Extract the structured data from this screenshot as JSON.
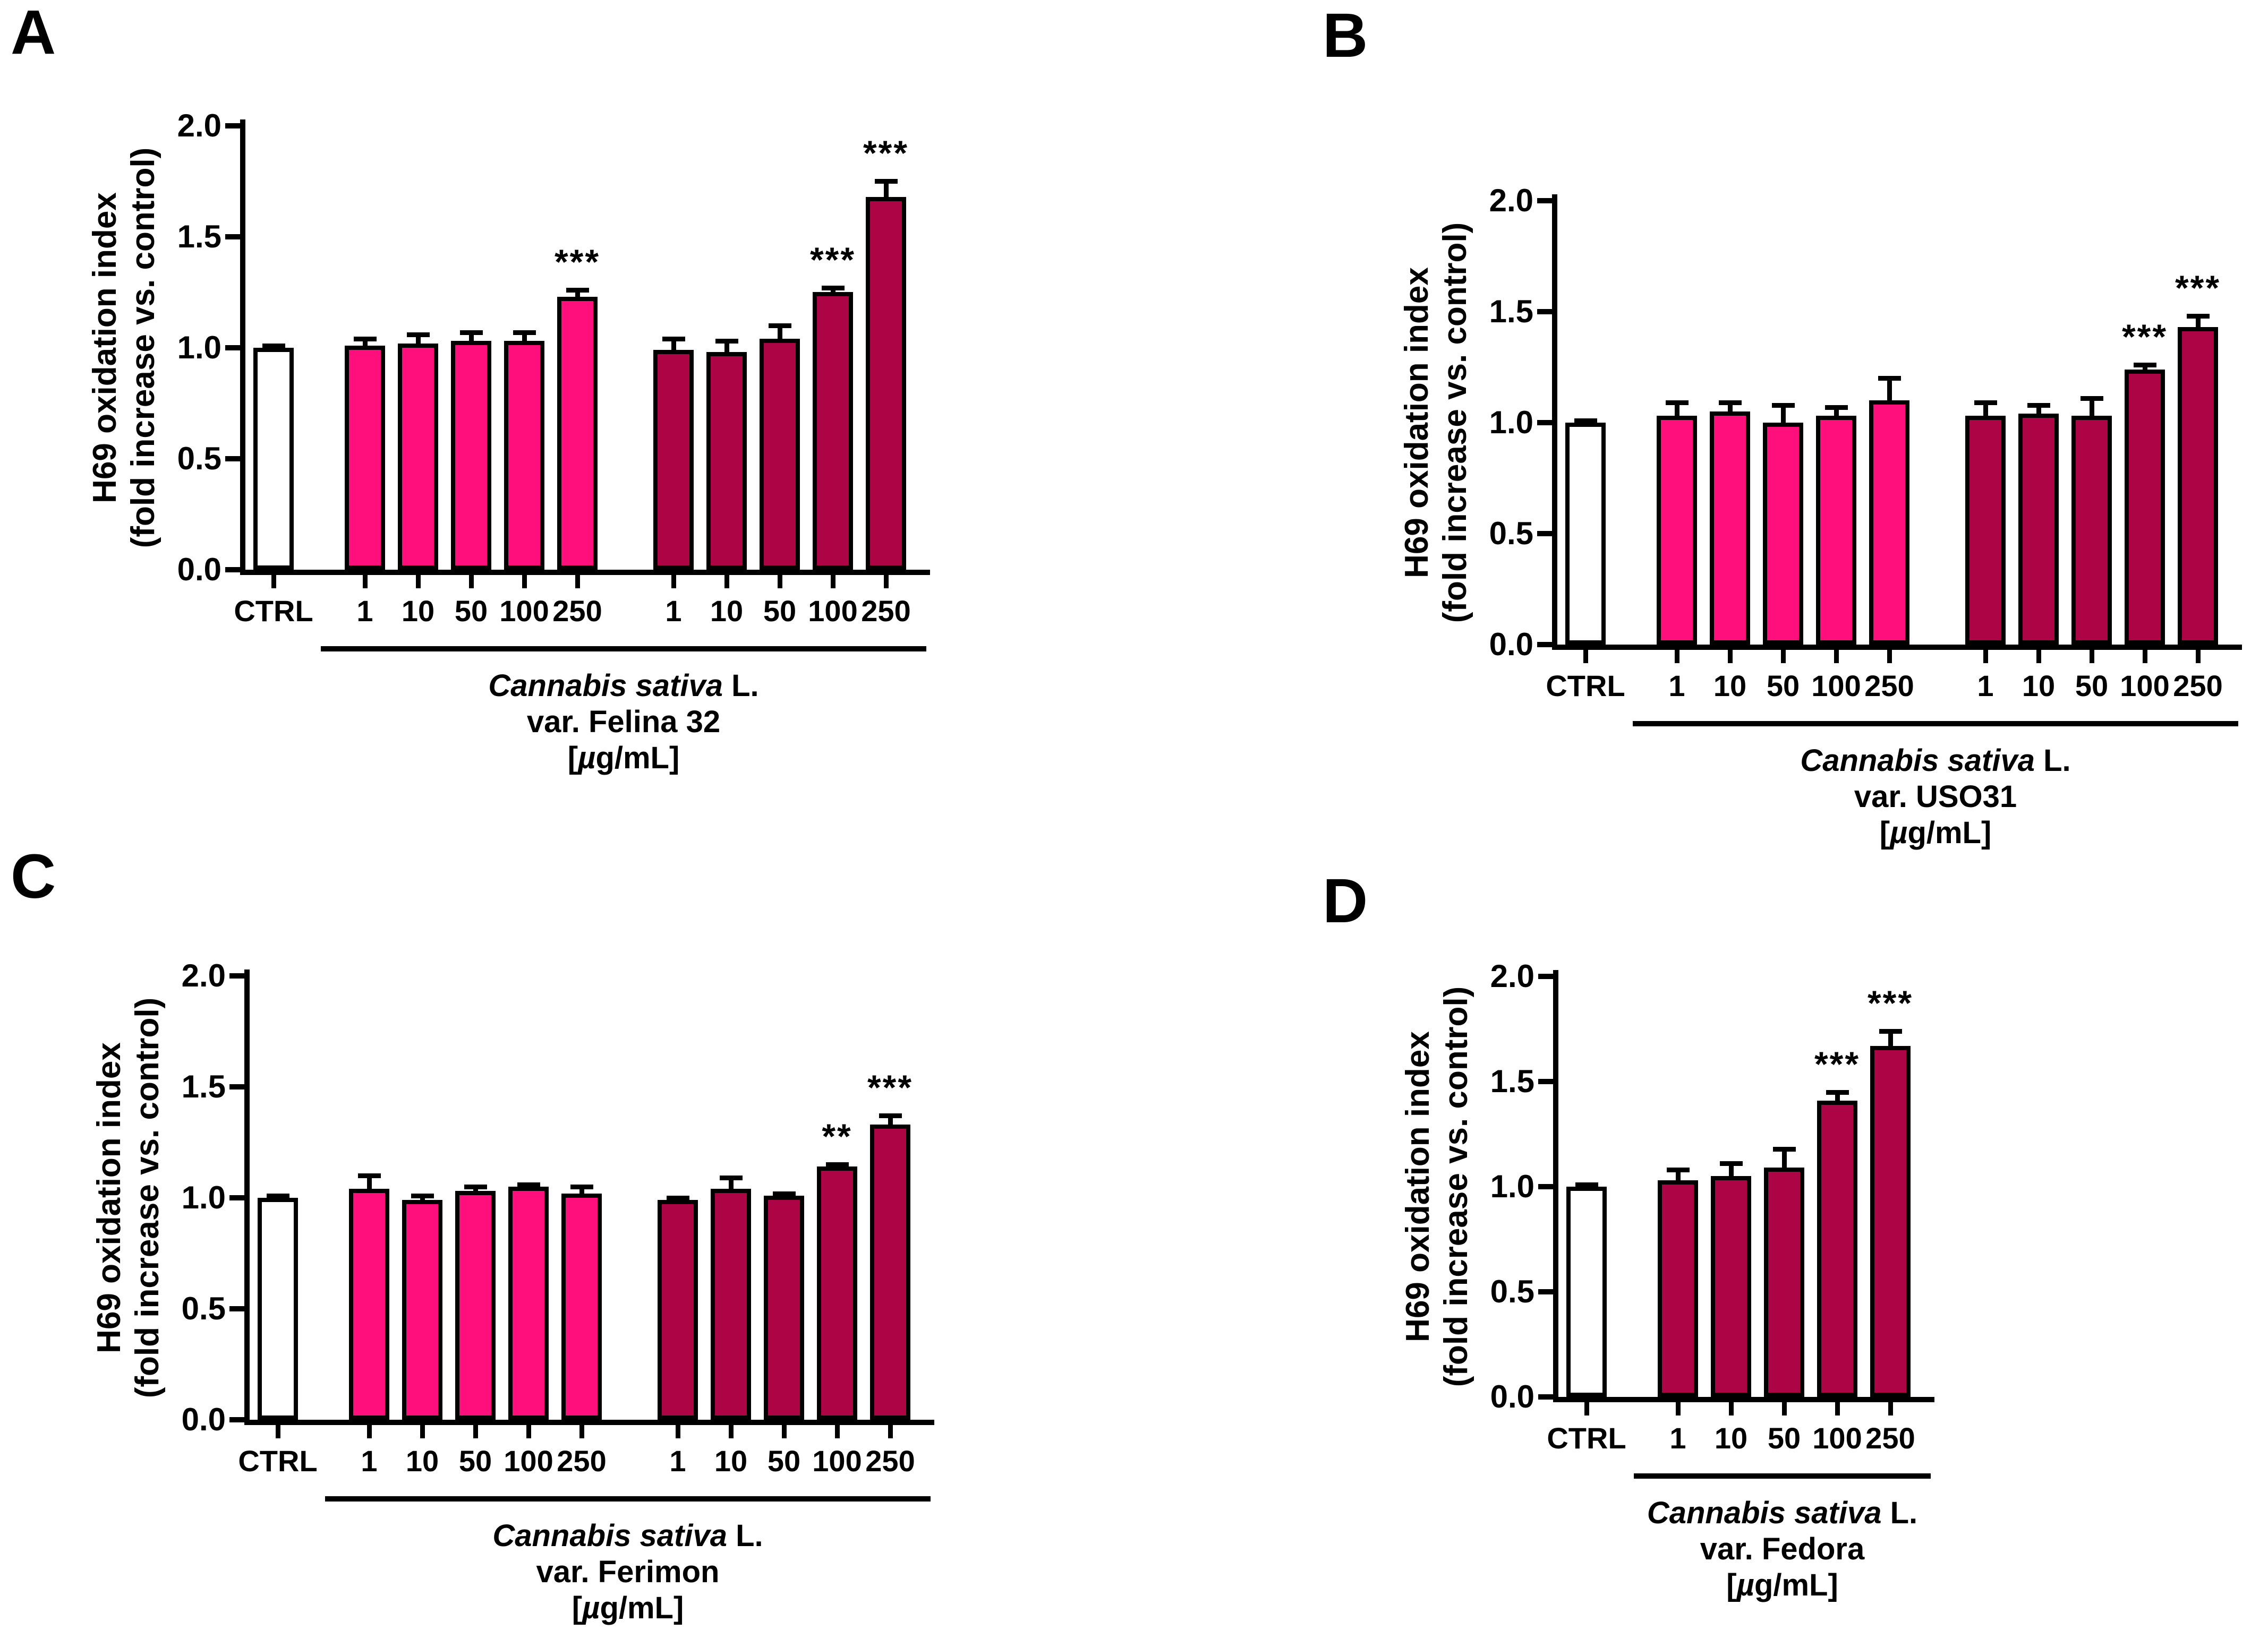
{
  "colors": {
    "pink": "#FF0F7C",
    "dark": "#AD0446",
    "white": "#FFFFFF",
    "axis": "#000000"
  },
  "chart_data": [
    {
      "type": "bar",
      "panel": "A",
      "ylabel_line1": "H69 oxidation index",
      "ylabel_line2": "(fold increase vs. control)",
      "ylim": [
        0.0,
        2.0
      ],
      "ytick_labels": [
        "0.0",
        "0.5",
        "1.0",
        "1.5",
        "2.0"
      ],
      "categories": [
        "CTRL",
        "1",
        "10",
        "50",
        "100",
        "250",
        "1",
        "10",
        "50",
        "100",
        "250"
      ],
      "values": [
        1.0,
        1.01,
        1.02,
        1.03,
        1.03,
        1.23,
        0.99,
        0.98,
        1.04,
        1.25,
        1.68
      ],
      "errors": [
        0.01,
        0.03,
        0.04,
        0.04,
        0.04,
        0.03,
        0.05,
        0.05,
        0.06,
        0.02,
        0.07
      ],
      "significance": [
        "",
        "",
        "",
        "",
        "",
        "***",
        "",
        "",
        "",
        "***",
        "***"
      ],
      "fills": [
        "white",
        "pink",
        "pink",
        "pink",
        "pink",
        "pink",
        "dark",
        "dark",
        "dark",
        "dark",
        "dark"
      ],
      "legend": "none",
      "grid": "off",
      "group_label": {
        "species": "Cannabis sativa",
        "binomial_suffix": " L.",
        "variety": "var. Felina 32",
        "unit_open": "[",
        "unit_mu": "µ",
        "unit_rest": "g/mL]"
      }
    },
    {
      "type": "bar",
      "panel": "B",
      "ylabel_line1": "H69 oxidation index",
      "ylabel_line2": "(fold increase vs. control)",
      "ylim": [
        0.0,
        2.0
      ],
      "ytick_labels": [
        "0.0",
        "0.5",
        "1.0",
        "1.5",
        "2.0"
      ],
      "categories": [
        "CTRL",
        "1",
        "10",
        "50",
        "100",
        "250",
        "1",
        "10",
        "50",
        "100",
        "250"
      ],
      "values": [
        1.0,
        1.03,
        1.05,
        1.0,
        1.03,
        1.1,
        1.03,
        1.04,
        1.03,
        1.24,
        1.43
      ],
      "errors": [
        0.01,
        0.06,
        0.04,
        0.08,
        0.04,
        0.1,
        0.06,
        0.04,
        0.08,
        0.02,
        0.05
      ],
      "significance": [
        "",
        "",
        "",
        "",
        "",
        "",
        "",
        "",
        "",
        "***",
        "***"
      ],
      "fills": [
        "white",
        "pink",
        "pink",
        "pink",
        "pink",
        "pink",
        "dark",
        "dark",
        "dark",
        "dark",
        "dark"
      ],
      "legend": "none",
      "grid": "off",
      "group_label": {
        "species": "Cannabis sativa",
        "binomial_suffix": " L.",
        "variety": "var. USO31",
        "unit_open": "[",
        "unit_mu": "µ",
        "unit_rest": "g/mL]"
      }
    },
    {
      "type": "bar",
      "panel": "C",
      "ylabel_line1": "H69 oxidation index",
      "ylabel_line2": "(fold increase vs. control)",
      "ylim": [
        0.0,
        2.0
      ],
      "ytick_labels": [
        "0.0",
        "0.5",
        "1.0",
        "1.5",
        "2.0"
      ],
      "categories": [
        "CTRL",
        "1",
        "10",
        "50",
        "100",
        "250",
        "1",
        "10",
        "50",
        "100",
        "250"
      ],
      "values": [
        1.0,
        1.04,
        0.99,
        1.03,
        1.05,
        1.02,
        0.99,
        1.04,
        1.01,
        1.14,
        1.33
      ],
      "errors": [
        0.01,
        0.06,
        0.02,
        0.02,
        0.01,
        0.03,
        0.01,
        0.05,
        0.01,
        0.01,
        0.04
      ],
      "significance": [
        "",
        "",
        "",
        "",
        "",
        "",
        "",
        "",
        "",
        "**",
        "***"
      ],
      "fills": [
        "white",
        "pink",
        "pink",
        "pink",
        "pink",
        "pink",
        "dark",
        "dark",
        "dark",
        "dark",
        "dark"
      ],
      "legend": "none",
      "grid": "off",
      "group_label": {
        "species": "Cannabis sativa",
        "binomial_suffix": " L.",
        "variety": "var. Ferimon",
        "unit_open": "[",
        "unit_mu": "µ",
        "unit_rest": "g/mL]"
      }
    },
    {
      "type": "bar",
      "panel": "D",
      "ylabel_line1": "H69 oxidation index",
      "ylabel_line2": "(fold increase vs. control)",
      "ylim": [
        0.0,
        2.0
      ],
      "ytick_labels": [
        "0.0",
        "0.5",
        "1.0",
        "1.5",
        "2.0"
      ],
      "categories": [
        "CTRL",
        "1",
        "10",
        "50",
        "100",
        "250"
      ],
      "values": [
        1.0,
        1.03,
        1.05,
        1.09,
        1.41,
        1.67
      ],
      "errors": [
        0.01,
        0.05,
        0.06,
        0.09,
        0.04,
        0.07
      ],
      "significance": [
        "",
        "",
        "",
        "",
        "***",
        "***"
      ],
      "fills": [
        "white",
        "dark",
        "dark",
        "dark",
        "dark",
        "dark"
      ],
      "legend": "none",
      "grid": "off",
      "group_label": {
        "species": "Cannabis sativa",
        "binomial_suffix": " L.",
        "variety": "var. Fedora",
        "unit_open": "[",
        "unit_mu": "µ",
        "unit_rest": "g/mL]"
      }
    }
  ]
}
